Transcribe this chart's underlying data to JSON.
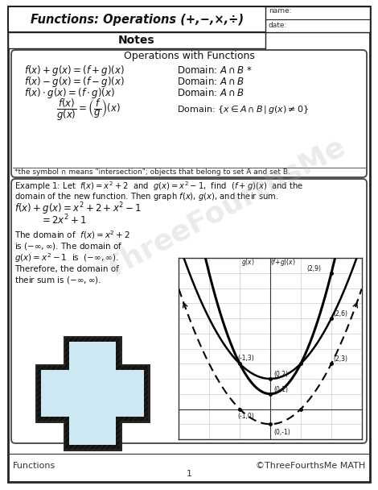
{
  "title": "Functions: Operations (+,-,×,÷)",
  "subtitle": "Notes",
  "name_label": "name:",
  "date_label": "date:",
  "section1_title": "Operations with Functions",
  "footnote": "*the symbol ∩ means \"intersection\"; objects that belong to set A and set B.",
  "footer_left": "Functions",
  "footer_right": "©ThreeFourthsMe MATH",
  "footer_page": "1",
  "bg_color": "#ffffff",
  "watermark_color": "#b0b0b0",
  "graph_bg": "#ffffff",
  "graph_grid_color": "#cccccc"
}
